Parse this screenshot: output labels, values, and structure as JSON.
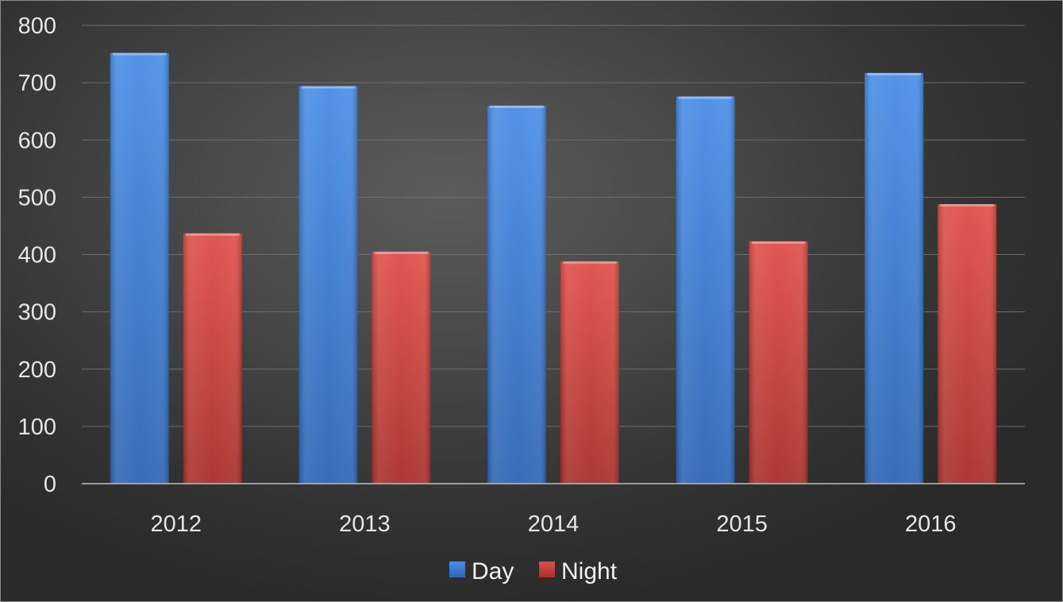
{
  "chart_data": {
    "type": "bar",
    "categories": [
      "2012",
      "2013",
      "2014",
      "2015",
      "2016"
    ],
    "series": [
      {
        "name": "Day",
        "values": [
          752,
          694,
          660,
          676,
          717
        ],
        "color": "#3f7fd8"
      },
      {
        "name": "Night",
        "values": [
          437,
          405,
          388,
          423,
          488
        ],
        "color": "#d0403a"
      }
    ],
    "title": "",
    "xlabel": "",
    "ylabel": "",
    "ylim": [
      0,
      800
    ],
    "yticks": [
      "0",
      "100",
      "200",
      "300",
      "400",
      "500",
      "600",
      "700",
      "800"
    ],
    "grid": true,
    "legend_position": "bottom"
  }
}
